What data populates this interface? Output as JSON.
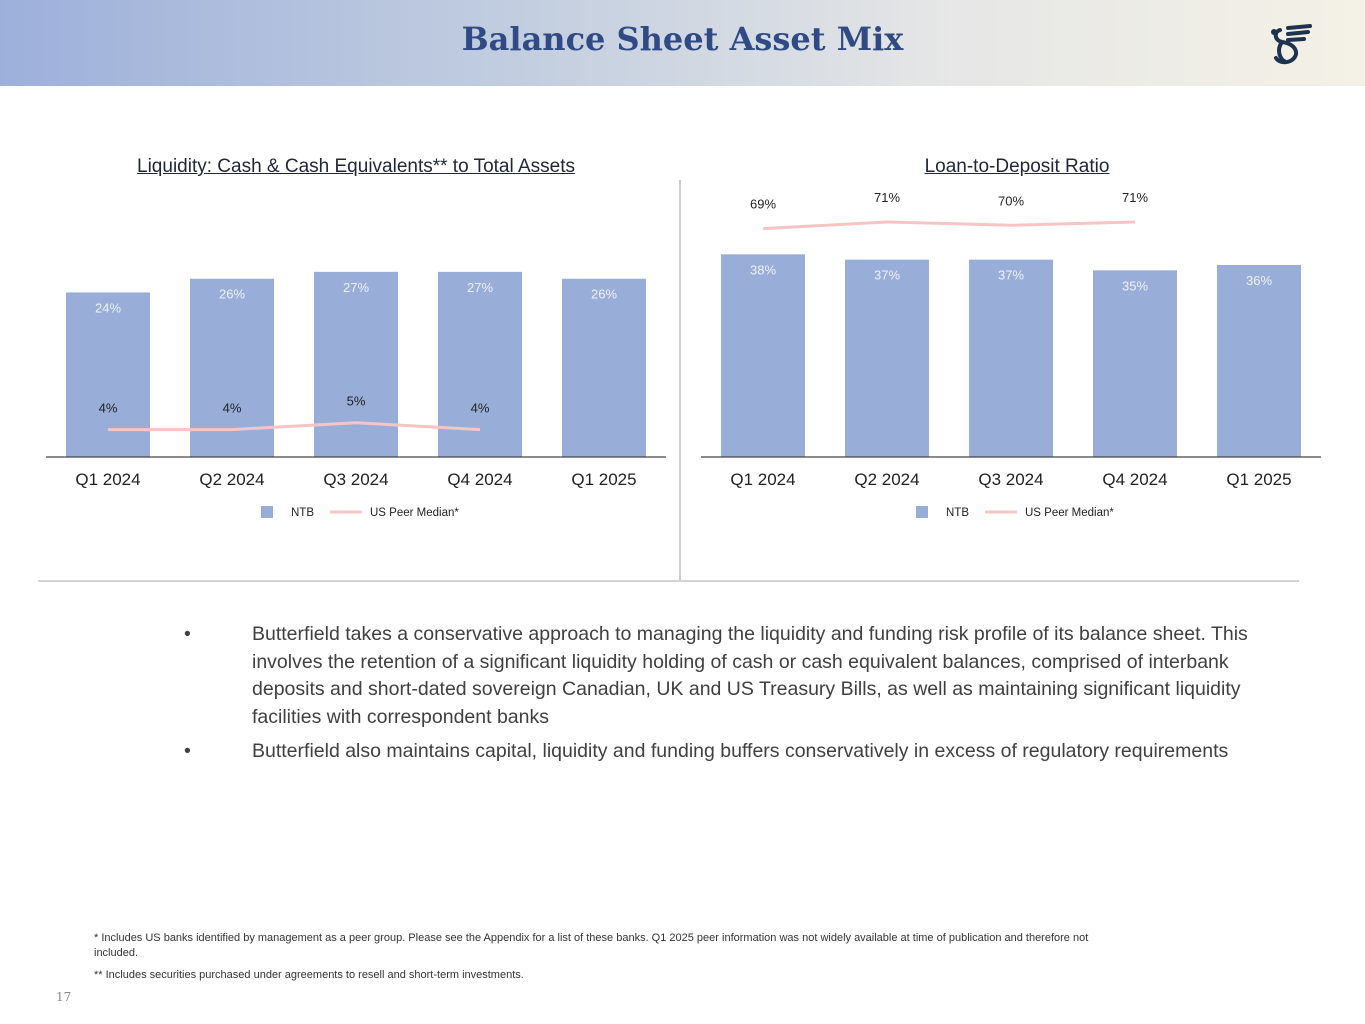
{
  "header": {
    "title": "Balance Sheet Asset Mix",
    "logo": "butterfield-griffin-logo"
  },
  "colors": {
    "bar": "#98aed9",
    "line": "#f6c4c4",
    "bar_label": "#eef1fa",
    "text": "#222222"
  },
  "chart_data": [
    {
      "type": "bar",
      "title": "Liquidity: Cash & Cash Equivalents** to Total Assets",
      "categories": [
        "Q1 2024",
        "Q2 2024",
        "Q3 2024",
        "Q4 2024",
        "Q1 2025"
      ],
      "series": [
        {
          "name": "NTB",
          "type": "bar",
          "values": [
            24,
            26,
            27,
            27,
            26
          ],
          "labels": [
            "24%",
            "26%",
            "27%",
            "27%",
            "26%"
          ]
        },
        {
          "name": "US Peer Median*",
          "type": "line",
          "values": [
            4,
            4,
            5,
            4,
            null
          ],
          "labels": [
            "4%",
            "4%",
            "5%",
            "4%",
            ""
          ]
        }
      ],
      "ylim": [
        0,
        35
      ],
      "line_ylim": [
        0,
        35
      ],
      "grid": false,
      "legend": "bottom"
    },
    {
      "type": "bar",
      "title": "Loan-to-Deposit Ratio",
      "categories": [
        "Q1 2024",
        "Q2 2024",
        "Q3 2024",
        "Q4 2024",
        "Q1 2025"
      ],
      "series": [
        {
          "name": "NTB",
          "type": "bar",
          "values": [
            38,
            37,
            37,
            35,
            36
          ],
          "labels": [
            "38%",
            "37%",
            "37%",
            "35%",
            "36%"
          ]
        },
        {
          "name": "US Peer Median*",
          "type": "line",
          "values": [
            69,
            71,
            70,
            71,
            null
          ],
          "labels": [
            "69%",
            "71%",
            "70%",
            "71%",
            ""
          ]
        }
      ],
      "ylim": [
        0,
        45
      ],
      "line_ylim": [
        0,
        72.5
      ],
      "grid": false,
      "legend": "bottom"
    }
  ],
  "bullets": [
    "Butterfield takes a conservative approach to managing the liquidity and funding risk profile of its balance sheet. This involves the retention of a significant liquidity holding of cash or cash equivalent balances, comprised of interbank deposits and short-dated sovereign Canadian, UK and US Treasury Bills, as well as maintaining significant liquidity facilities with correspondent banks",
    "Butterfield also maintains capital, liquidity and funding buffers conservatively in excess of regulatory requirements"
  ],
  "bullet_symbol": "•",
  "footnotes": [
    "* Includes US banks identified by management as a peer group. Please see the Appendix for a list of these banks. Q1 2025 peer information was not widely available at time of publication and therefore not included.",
    "** Includes securities purchased under agreements to resell and short-term investments."
  ],
  "page_number": "17"
}
